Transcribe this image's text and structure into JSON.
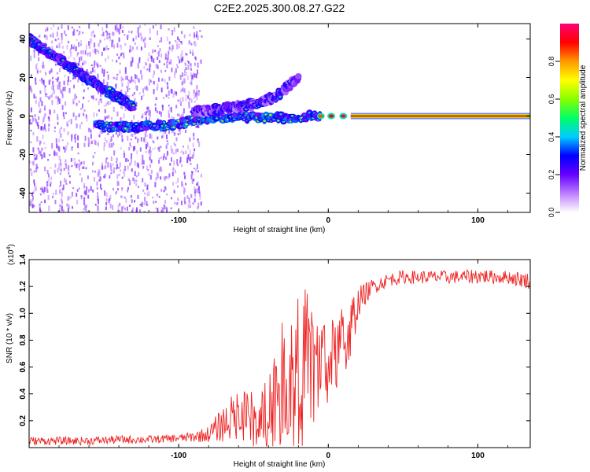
{
  "title": "C2E2.2025.300.08.27.G22",
  "chart_data": [
    {
      "type": "heatmap",
      "title": "C2E2.2025.300.08.27.G22",
      "xlabel": "Height of straight line (km)",
      "ylabel": "Frequency (Hz)",
      "xlim": [
        -200,
        135
      ],
      "ylim": [
        -50,
        48
      ],
      "xticks": [
        -100,
        0,
        100
      ],
      "xtick_labels": [
        "-100",
        "0",
        "100"
      ],
      "yticks": [
        -40,
        -20,
        0,
        20,
        40
      ],
      "ytick_labels": [
        "-40",
        "-20",
        "0",
        "20",
        "40"
      ],
      "colorbar": {
        "label": "Normalized spectral amplitude",
        "range": [
          0,
          1
        ],
        "ticks": [
          0.0,
          0.2,
          0.4,
          0.6,
          0.8
        ],
        "tick_labels": [
          "0.0",
          "0.2",
          "0.4",
          "0.6",
          "0.8"
        ]
      },
      "features": [
        {
          "name": "steady carrier line",
          "x_from": 15,
          "x_to": 135,
          "frequency": 0,
          "amplitude": 0.95
        },
        {
          "name": "main track",
          "x": [
            -155,
            -130,
            -110,
            -95,
            -80,
            -60,
            -40,
            -25,
            -15,
            -5
          ],
          "frequency": [
            -5,
            -6,
            -5,
            -3,
            -1,
            0,
            -1,
            -1,
            0,
            0
          ],
          "amplitude": 0.5
        },
        {
          "name": "upper descending track",
          "x": [
            -200,
            -185,
            -170,
            -150,
            -130
          ],
          "frequency": [
            40,
            32,
            24,
            14,
            5
          ],
          "amplitude": 0.45
        },
        {
          "name": "rising branch",
          "x": [
            -90,
            -70,
            -50,
            -35,
            -20
          ],
          "frequency": [
            2,
            4,
            6,
            10,
            20
          ],
          "amplitude": 0.35
        }
      ]
    },
    {
      "type": "line",
      "title": "",
      "xlabel": "Height of straight line (km)",
      "ylabel": "SNR (10 * v/v)",
      "y_multiplier_label": "(x10",
      "y_multiplier_exponent": "4",
      "y_multiplier_close": ")",
      "xlim": [
        -200,
        135
      ],
      "ylim": [
        0,
        1.4
      ],
      "xticks": [
        -100,
        0,
        100
      ],
      "xtick_labels": [
        "-100",
        "0",
        "100"
      ],
      "yticks": [
        0.2,
        0.4,
        0.6,
        0.8,
        1.0,
        1.2,
        1.4
      ],
      "ytick_labels": [
        "0.2",
        "0.4",
        "0.6",
        "0.8",
        "1.0",
        "1.2",
        "1.4"
      ],
      "series": [
        {
          "name": "SNR",
          "color": "#ee2222",
          "x": [
            -200,
            -180,
            -160,
            -140,
            -120,
            -100,
            -90,
            -80,
            -70,
            -60,
            -50,
            -40,
            -35,
            -30,
            -25,
            -20,
            -15,
            -10,
            -5,
            0,
            5,
            10,
            15,
            20,
            25,
            30,
            40,
            50,
            60,
            70,
            80,
            90,
            100,
            110,
            120,
            130,
            135
          ],
          "y": [
            0.05,
            0.05,
            0.05,
            0.06,
            0.06,
            0.07,
            0.08,
            0.1,
            0.18,
            0.25,
            0.2,
            0.3,
            0.45,
            0.5,
            0.6,
            0.65,
            0.7,
            0.65,
            0.6,
            0.62,
            0.7,
            0.78,
            0.9,
            1.08,
            1.15,
            1.2,
            1.25,
            1.27,
            1.27,
            1.27,
            1.27,
            1.27,
            1.28,
            1.27,
            1.27,
            1.25,
            1.24
          ],
          "noise": [
            0.03,
            0.03,
            0.03,
            0.03,
            0.03,
            0.03,
            0.04,
            0.06,
            0.14,
            0.2,
            0.22,
            0.3,
            0.4,
            0.45,
            0.5,
            0.55,
            0.5,
            0.45,
            0.4,
            0.3,
            0.3,
            0.28,
            0.25,
            0.12,
            0.08,
            0.06,
            0.05,
            0.05,
            0.05,
            0.05,
            0.05,
            0.05,
            0.06,
            0.05,
            0.05,
            0.06,
            0.06
          ]
        }
      ]
    }
  ]
}
